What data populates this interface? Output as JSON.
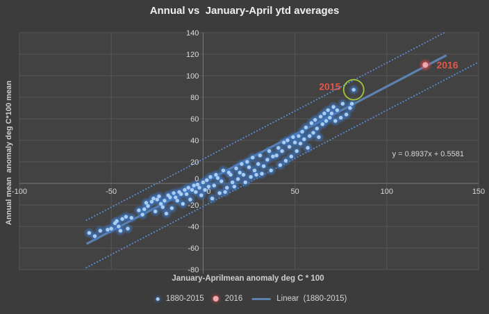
{
  "colors": {
    "chart_background": "#3c3c3c",
    "plot_background": "#424242",
    "gridline": "#565656",
    "axis_line": "#7a7a7a",
    "plot_border": "#5e5e5e",
    "tick_text": "#d9d9d9",
    "title_text": "#efefef",
    "point_core_blue": "#abcef0",
    "point_glow_blue": "#3d77c4",
    "point_core_pink": "#eca9b3",
    "point_glow_red": "#dc4748",
    "trend_line": "#5e82b0",
    "band_line": "#5c8fd8",
    "annotation_red": "#e4564a",
    "highlight_green": "#a4c83c"
  },
  "chart_data": {
    "type": "scatter",
    "title": "Annual vs  January-April ytd averages",
    "xlabel": "January-Aprilmean anomaly deg C * 100",
    "ylabel": "Annual mean  anomaly deg C*100 mean",
    "xlim": [
      -100,
      150
    ],
    "ylim": [
      -80,
      140
    ],
    "xticks": [
      -100,
      -50,
      0,
      50,
      100,
      150
    ],
    "yticks": [
      -80,
      -60,
      -40,
      -20,
      0,
      20,
      40,
      60,
      80,
      100,
      120,
      140
    ],
    "grid": true,
    "equation_label": "y = 0.8937x + 0.5581",
    "trendline": {
      "name": "Linear  (1880-2015)",
      "slope": 0.8937,
      "intercept": 0.5581,
      "x_range": [
        -63.5,
        132.5
      ],
      "band_offset": 22
    },
    "highlight_circle": {
      "x": 82,
      "y": 87,
      "radius_px": 14.5
    },
    "annotations": [
      {
        "text": "2015",
        "x": 69,
        "y": 90,
        "color": "#e4564a",
        "size": 14,
        "bold": true
      },
      {
        "text": "2016",
        "x": 133,
        "y": 110,
        "color": "#e4564a",
        "size": 14,
        "bold": true
      },
      {
        "text": "y = 0.8937x + 0.5581",
        "x": 122.5,
        "y": 27.5,
        "color": "#d8d8d8",
        "size": 11,
        "bold": false
      }
    ],
    "legend": {
      "position": "bottom",
      "entries": [
        {
          "label": "1880-2015",
          "marker": "dot-blue"
        },
        {
          "label": "2016",
          "marker": "dot-pink"
        },
        {
          "label": "Linear  (1880-2015)",
          "marker": "line-blue"
        }
      ]
    },
    "series": [
      {
        "name": "1880-2015",
        "core_color": "#abcef0",
        "glow_color": "#3d77c4",
        "points": [
          [
            -62,
            -46
          ],
          [
            -59,
            -49
          ],
          [
            -56,
            -44
          ],
          [
            -52,
            -43
          ],
          [
            -50,
            -42
          ],
          [
            -48,
            -37
          ],
          [
            -47,
            -35
          ],
          [
            -46,
            -40
          ],
          [
            -45,
            -44
          ],
          [
            -44,
            -33
          ],
          [
            -42,
            -31
          ],
          [
            -41,
            -42
          ],
          [
            -39,
            -32
          ],
          [
            -35,
            -25
          ],
          [
            -33,
            -29
          ],
          [
            -32,
            -24
          ],
          [
            -31,
            -18
          ],
          [
            -30,
            -21
          ],
          [
            -28,
            -17
          ],
          [
            -27,
            -14
          ],
          [
            -26,
            -26
          ],
          [
            -25,
            -15
          ],
          [
            -24,
            -12
          ],
          [
            -23,
            -19
          ],
          [
            -22,
            -22
          ],
          [
            -21,
            -16
          ],
          [
            -20,
            -28
          ],
          [
            -19,
            -11
          ],
          [
            -18,
            -13
          ],
          [
            -17,
            -23
          ],
          [
            -16,
            -9
          ],
          [
            -15,
            -13
          ],
          [
            -14,
            -16
          ],
          [
            -13,
            -8
          ],
          [
            -12,
            -10
          ],
          [
            -11,
            -19
          ],
          [
            -10,
            -6
          ],
          [
            -9,
            -10
          ],
          [
            -8,
            -4
          ],
          [
            -7,
            -15
          ],
          [
            -6,
            -6
          ],
          [
            -5,
            -2
          ],
          [
            -4,
            -8
          ],
          [
            -3,
            -1
          ],
          [
            -2,
            -4
          ],
          [
            -1,
            -11
          ],
          [
            0,
            1
          ],
          [
            1,
            -6
          ],
          [
            2,
            3
          ],
          [
            3,
            -3
          ],
          [
            4,
            6
          ],
          [
            5,
            -14
          ],
          [
            6,
            -2
          ],
          [
            7,
            8
          ],
          [
            8,
            5
          ],
          [
            9,
            -9
          ],
          [
            10,
            2
          ],
          [
            11,
            12
          ],
          [
            12,
            -8
          ],
          [
            13,
            -4
          ],
          [
            14,
            10
          ],
          [
            15,
            8
          ],
          [
            16,
            1
          ],
          [
            17,
            -3
          ],
          [
            18,
            14
          ],
          [
            19,
            4
          ],
          [
            20,
            10
          ],
          [
            21,
            18
          ],
          [
            22,
            8
          ],
          [
            23,
            1
          ],
          [
            24,
            20
          ],
          [
            25,
            15
          ],
          [
            26,
            6
          ],
          [
            27,
            24
          ],
          [
            28,
            12
          ],
          [
            29,
            8
          ],
          [
            30,
            18
          ],
          [
            31,
            26
          ],
          [
            32,
            9
          ],
          [
            33,
            16
          ],
          [
            35,
            22
          ],
          [
            36,
            30
          ],
          [
            37,
            12
          ],
          [
            38,
            25
          ],
          [
            40,
            26
          ],
          [
            41,
            33
          ],
          [
            42,
            17
          ],
          [
            43,
            30
          ],
          [
            44,
            38
          ],
          [
            45,
            21
          ],
          [
            46,
            40
          ],
          [
            47,
            34
          ],
          [
            48,
            25
          ],
          [
            49,
            43
          ],
          [
            50,
            38
          ],
          [
            51,
            30
          ],
          [
            52,
            44
          ],
          [
            53,
            37
          ],
          [
            54,
            48
          ],
          [
            55,
            41
          ],
          [
            56,
            52
          ],
          [
            57,
            33
          ],
          [
            58,
            44
          ],
          [
            59,
            56
          ],
          [
            60,
            47
          ],
          [
            61,
            59
          ],
          [
            62,
            51
          ],
          [
            63,
            43
          ],
          [
            64,
            62
          ],
          [
            65,
            55
          ],
          [
            66,
            65
          ],
          [
            67,
            58
          ],
          [
            68,
            68
          ],
          [
            69,
            61
          ],
          [
            70,
            65
          ],
          [
            71,
            71
          ],
          [
            72,
            58
          ],
          [
            73,
            68
          ],
          [
            75,
            61
          ],
          [
            76,
            74
          ],
          [
            78,
            64
          ],
          [
            80,
            70
          ],
          [
            81,
            74
          ],
          [
            82,
            87
          ]
        ]
      },
      {
        "name": "2016",
        "core_color": "#eca9b3",
        "glow_color": "#dc4748",
        "points": [
          [
            121,
            110
          ]
        ]
      }
    ]
  }
}
